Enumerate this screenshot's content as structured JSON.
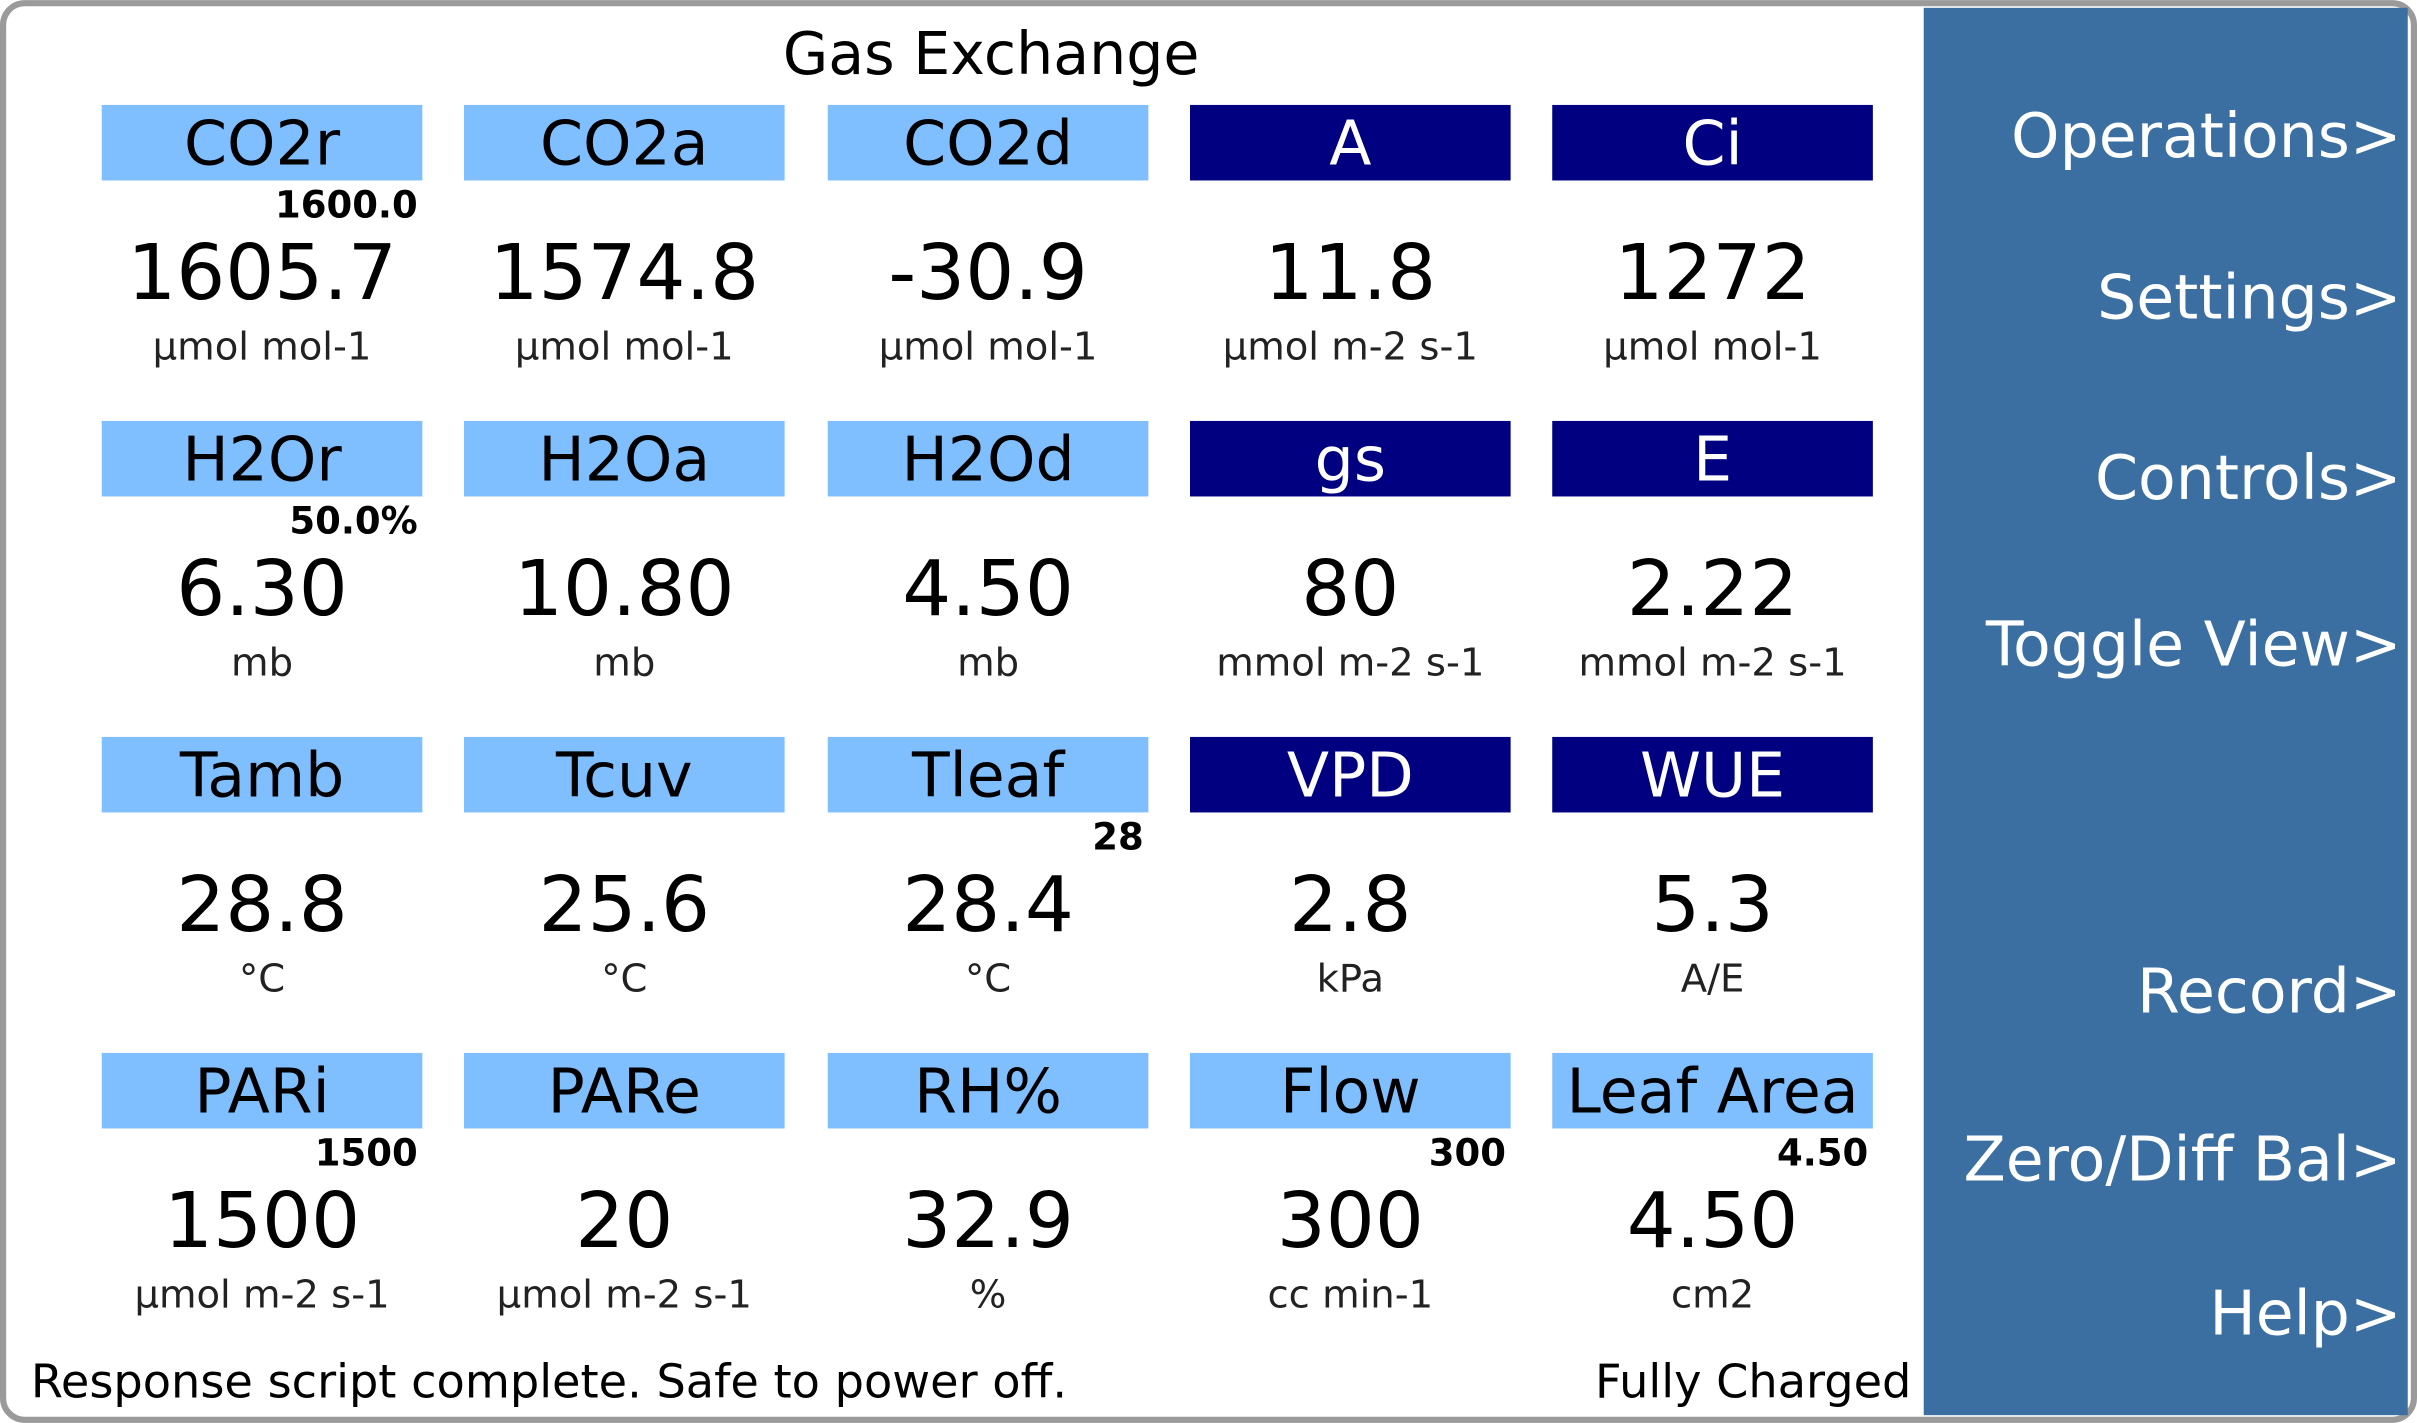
{
  "title": "Gas Exchange",
  "cells": [
    {
      "label": "CO2r",
      "setpoint": "1600.0",
      "value": "1605.7",
      "unit": "µmol mol-1",
      "dark": false
    },
    {
      "label": "CO2a",
      "value": "1574.8",
      "unit": "µmol mol-1",
      "dark": false
    },
    {
      "label": "CO2d",
      "value": "-30.9",
      "unit": "µmol mol-1",
      "dark": false
    },
    {
      "label": "A",
      "value": "11.8",
      "unit": "µmol m-2 s-1",
      "dark": true
    },
    {
      "label": "Ci",
      "value": "1272",
      "unit": "µmol mol-1",
      "dark": true
    },
    {
      "label": "H2Or",
      "setpoint": "50.0%",
      "value": "6.30",
      "unit": "mb",
      "dark": false
    },
    {
      "label": "H2Oa",
      "value": "10.80",
      "unit": "mb",
      "dark": false
    },
    {
      "label": "H2Od",
      "value": "4.50",
      "unit": "mb",
      "dark": false
    },
    {
      "label": "gs",
      "value": "80",
      "unit": "mmol m-2 s-1",
      "dark": true
    },
    {
      "label": "E",
      "value": "2.22",
      "unit": "mmol m-2 s-1",
      "dark": true
    },
    {
      "label": "Tamb",
      "value": "28.8",
      "unit": "°C",
      "dark": false
    },
    {
      "label": "Tcuv",
      "value": "25.6",
      "unit": "°C",
      "dark": false
    },
    {
      "label": "Tleaf",
      "setpoint": "28",
      "value": "28.4",
      "unit": "°C",
      "dark": false
    },
    {
      "label": "VPD",
      "value": "2.8",
      "unit": "kPa",
      "dark": true
    },
    {
      "label": "WUE",
      "value": "5.3",
      "unit": "A/E",
      "dark": true
    },
    {
      "label": "PARi",
      "setpoint": "1500",
      "value": "1500",
      "unit": "µmol m-2 s-1",
      "dark": false
    },
    {
      "label": "PARe",
      "value": "20",
      "unit": "µmol m-2 s-1",
      "dark": false
    },
    {
      "label": "RH%",
      "value": "32.9",
      "unit": "%",
      "dark": false
    },
    {
      "label": "Flow",
      "setpoint": "300",
      "value": "300",
      "unit": "cc min-1",
      "dark": false
    },
    {
      "label": "Leaf Area",
      "setpoint": "4.50",
      "value": "4.50",
      "unit": "cm2",
      "dark": false
    }
  ],
  "menu": [
    "Operations>",
    "Settings>",
    "Controls>",
    "Toggle View>",
    "Record>",
    "Zero/Diff Bal>",
    "Help>"
  ],
  "status_left": "Response script complete. Safe to power off.",
  "status_right": "Fully Charged"
}
